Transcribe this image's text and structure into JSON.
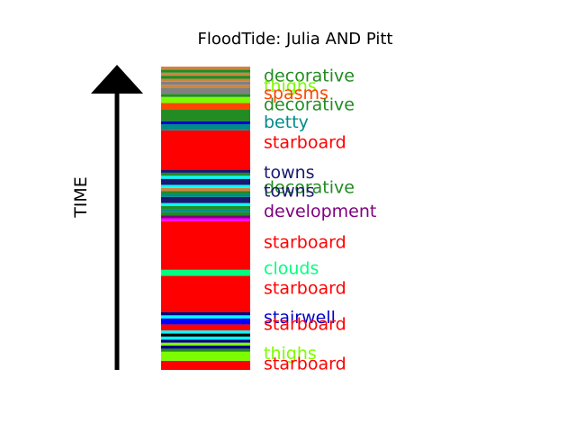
{
  "chart_data": {
    "type": "bar",
    "orientation": "vertical-stacked-timeline",
    "title": "FloodTide: Julia AND Pitt",
    "ylabel": "TIME",
    "xlabel": "",
    "ylim": [
      0,
      100
    ],
    "arrow_color": "#000000",
    "segments": [
      {
        "start": 0.0,
        "end": 3.0,
        "color": "#ff0000"
      },
      {
        "start": 3.0,
        "end": 6.0,
        "color": "#7cfc00"
      },
      {
        "start": 6.0,
        "end": 7.0,
        "color": "#228b22"
      },
      {
        "start": 7.0,
        "end": 8.0,
        "color": "#000080"
      },
      {
        "start": 8.0,
        "end": 9.0,
        "color": "#7cfc00"
      },
      {
        "start": 9.0,
        "end": 10.0,
        "color": "#000080"
      },
      {
        "start": 10.0,
        "end": 11.0,
        "color": "#00ffff"
      },
      {
        "start": 11.0,
        "end": 12.0,
        "color": "#000000"
      },
      {
        "start": 12.0,
        "end": 13.0,
        "color": "#00ffff"
      },
      {
        "start": 13.0,
        "end": 15.0,
        "color": "#ff0000"
      },
      {
        "start": 15.0,
        "end": 17.0,
        "color": "#0000ff"
      },
      {
        "start": 17.0,
        "end": 18.0,
        "color": "#00ffff"
      },
      {
        "start": 18.0,
        "end": 19.0,
        "color": "#000080"
      },
      {
        "start": 19.0,
        "end": 31.0,
        "color": "#ff0000"
      },
      {
        "start": 31.0,
        "end": 33.0,
        "color": "#00ff7f"
      },
      {
        "start": 33.0,
        "end": 49.0,
        "color": "#ff0000"
      },
      {
        "start": 49.0,
        "end": 50.0,
        "color": "#ff00ff"
      },
      {
        "start": 50.0,
        "end": 51.0,
        "color": "#800080"
      },
      {
        "start": 51.0,
        "end": 52.0,
        "color": "#228b22"
      },
      {
        "start": 52.0,
        "end": 53.0,
        "color": "#008b8b"
      },
      {
        "start": 53.0,
        "end": 54.0,
        "color": "#228b22"
      },
      {
        "start": 54.0,
        "end": 55.0,
        "color": "#00ffff"
      },
      {
        "start": 55.0,
        "end": 57.0,
        "color": "#191970"
      },
      {
        "start": 57.0,
        "end": 58.0,
        "color": "#008b8b"
      },
      {
        "start": 58.0,
        "end": 59.0,
        "color": "#228b22"
      },
      {
        "start": 59.0,
        "end": 60.0,
        "color": "#cd853f"
      },
      {
        "start": 60.0,
        "end": 61.0,
        "color": "#00ffff"
      },
      {
        "start": 61.0,
        "end": 63.0,
        "color": "#191970"
      },
      {
        "start": 63.0,
        "end": 64.0,
        "color": "#00ffff"
      },
      {
        "start": 64.0,
        "end": 65.0,
        "color": "#228b22"
      },
      {
        "start": 65.0,
        "end": 66.0,
        "color": "#191970"
      },
      {
        "start": 66.0,
        "end": 79.0,
        "color": "#ff0000"
      },
      {
        "start": 79.0,
        "end": 81.0,
        "color": "#008b8b"
      },
      {
        "start": 81.0,
        "end": 82.0,
        "color": "#0000cd"
      },
      {
        "start": 82.0,
        "end": 86.0,
        "color": "#228b22"
      },
      {
        "start": 86.0,
        "end": 88.0,
        "color": "#ff4500"
      },
      {
        "start": 88.0,
        "end": 90.0,
        "color": "#7cfc00"
      },
      {
        "start": 90.0,
        "end": 91.0,
        "color": "#228b22"
      },
      {
        "start": 91.0,
        "end": 93.0,
        "color": "#808080"
      },
      {
        "start": 93.0,
        "end": 94.0,
        "color": "#cd853f"
      },
      {
        "start": 94.0,
        "end": 95.0,
        "color": "#808080"
      },
      {
        "start": 95.0,
        "end": 96.0,
        "color": "#cd853f"
      },
      {
        "start": 96.0,
        "end": 97.0,
        "color": "#228b22"
      },
      {
        "start": 97.0,
        "end": 98.0,
        "color": "#cd853f"
      },
      {
        "start": 98.0,
        "end": 99.0,
        "color": "#228b22"
      },
      {
        "start": 99.0,
        "end": 100.0,
        "color": "#cd853f"
      }
    ],
    "labels": [
      {
        "text": "decorative",
        "value": 96.7,
        "color": "#228b22"
      },
      {
        "text": "thighs",
        "value": 93.3,
        "color": "#7cfc00"
      },
      {
        "text": "spasms",
        "value": 90.9,
        "color": "#ff4500"
      },
      {
        "text": "decorative",
        "value": 87.3,
        "color": "#228b22"
      },
      {
        "text": "betty",
        "value": 81.5,
        "color": "#008b8b"
      },
      {
        "text": "starboard",
        "value": 74.8,
        "color": "#ff0000"
      },
      {
        "text": "towns",
        "value": 64.8,
        "color": "#191970"
      },
      {
        "text": "decorative",
        "value": 60.0,
        "color": "#228b22"
      },
      {
        "text": "towns",
        "value": 58.8,
        "color": "#191970"
      },
      {
        "text": "development",
        "value": 52.1,
        "color": "#800080"
      },
      {
        "text": "starboard",
        "value": 41.8,
        "color": "#ff0000"
      },
      {
        "text": "clouds",
        "value": 33.3,
        "color": "#00ff7f"
      },
      {
        "text": "starboard",
        "value": 26.7,
        "color": "#ff0000"
      },
      {
        "text": "stairwell",
        "value": 17.0,
        "color": "#0000cd"
      },
      {
        "text": "starboard",
        "value": 14.8,
        "color": "#ff0000"
      },
      {
        "text": "thighs",
        "value": 5.2,
        "color": "#7cfc00"
      },
      {
        "text": "starboard",
        "value": 1.8,
        "color": "#ff0000"
      }
    ]
  }
}
